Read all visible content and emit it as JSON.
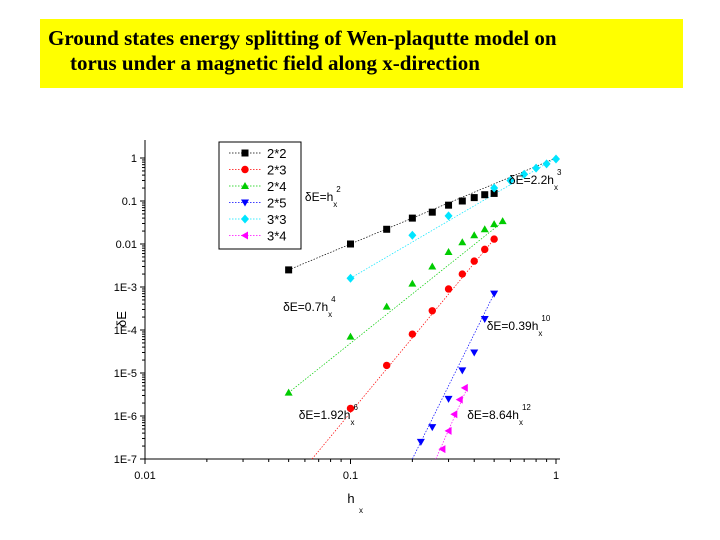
{
  "title": {
    "line1": "Ground states energy splitting of Wen-plaqutte model on",
    "line2": "torus under a magnetic field along x-direction"
  },
  "chart_data": {
    "type": "scatter",
    "xscale": "log",
    "yscale": "log",
    "xlim": [
      0.01,
      1
    ],
    "ylim": [
      1e-07,
      1
    ],
    "xticks": [
      "0.01",
      "0.1",
      "1"
    ],
    "yticks": [
      "1E-7",
      "1E-6",
      "1E-5",
      "1E-4",
      "1E-3",
      "0.01",
      "0.1",
      "1"
    ],
    "xlabel": "h",
    "xlabel_sub": "x",
    "ylabel": "δE",
    "legend": "top-left",
    "series": [
      {
        "name": "2*2",
        "color": "#000000",
        "marker": "square",
        "x": [
          0.05,
          0.1,
          0.15,
          0.2,
          0.25,
          0.3,
          0.35,
          0.4,
          0.45,
          0.5
        ],
        "y": [
          0.0025,
          0.01,
          0.022,
          0.04,
          0.055,
          0.08,
          0.1,
          0.12,
          0.14,
          0.15
        ]
      },
      {
        "name": "2*3",
        "color": "#ff0000",
        "marker": "circle",
        "x": [
          0.1,
          0.15,
          0.2,
          0.25,
          0.3,
          0.35,
          0.4,
          0.45,
          0.5
        ],
        "y": [
          1.5e-06,
          1.5e-05,
          8e-05,
          0.00028,
          0.0009,
          0.002,
          0.004,
          0.0075,
          0.013
        ]
      },
      {
        "name": "2*4",
        "color": "#00cc00",
        "marker": "triangle-up",
        "x": [
          0.05,
          0.1,
          0.15,
          0.2,
          0.25,
          0.3,
          0.35,
          0.4,
          0.45,
          0.5,
          0.55
        ],
        "y": [
          3.5e-06,
          7e-05,
          0.00035,
          0.0012,
          0.003,
          0.0065,
          0.011,
          0.016,
          0.022,
          0.029,
          0.034
        ]
      },
      {
        "name": "2*5",
        "color": "#0000ff",
        "marker": "triangle-down",
        "x": [
          0.22,
          0.25,
          0.3,
          0.35,
          0.4,
          0.45,
          0.5
        ],
        "y": [
          2.5e-07,
          5.5e-07,
          2.5e-06,
          1.15e-05,
          3e-05,
          0.00018,
          0.0007
        ]
      },
      {
        "name": "3*3",
        "color": "#00e5ff",
        "marker": "diamond",
        "x": [
          0.1,
          0.2,
          0.3,
          0.5,
          0.6,
          0.7,
          0.8,
          0.9,
          1.0
        ],
        "y": [
          0.0016,
          0.016,
          0.045,
          0.2,
          0.3,
          0.42,
          0.58,
          0.73,
          0.95
        ]
      },
      {
        "name": "3*4",
        "color": "#ff00ff",
        "marker": "triangle-left",
        "x": [
          0.28,
          0.3,
          0.32,
          0.34,
          0.36
        ],
        "y": [
          1.7e-07,
          4.5e-07,
          1.1e-06,
          2.4e-06,
          4.5e-06
        ]
      }
    ],
    "fit_lines": [
      {
        "x": [
          0.05,
          1
        ],
        "y": [
          0.0025,
          1
        ],
        "color": "#000000"
      },
      {
        "x": [
          0.1,
          1
        ],
        "y": [
          0.0016,
          1
        ],
        "color": "#00e5ff"
      },
      {
        "x": [
          0.05,
          0.56
        ],
        "y": [
          3.5e-06,
          0.035
        ],
        "color": "#00cc00"
      },
      {
        "x": [
          0.065,
          0.5
        ],
        "y": [
          1e-07,
          0.013
        ],
        "color": "#ff0000"
      },
      {
        "x": [
          0.2,
          0.5
        ],
        "y": [
          1e-07,
          0.0007
        ],
        "color": "#0000ff"
      },
      {
        "x": [
          0.26,
          0.37
        ],
        "y": [
          1e-07,
          4.5e-06
        ],
        "color": "#ff00ff"
      }
    ],
    "annotations": [
      {
        "base": "δE=h",
        "sub": "x",
        "sup": "2",
        "x": 0.06,
        "y": 0.1
      },
      {
        "base": "δE=2.2h",
        "sub": "x",
        "sup": "3",
        "x": 0.59,
        "y": 0.25
      },
      {
        "base": "δE=0.7h",
        "sub": "x",
        "sup": "4",
        "x": 0.047,
        "y": 0.00028
      },
      {
        "base": "δE=0.39h",
        "sub": "x",
        "sup": "10",
        "x": 0.46,
        "y": 0.0001
      },
      {
        "base": "δE=1.92h",
        "sub": "x",
        "sup": "6",
        "x": 0.056,
        "y": 8.5e-07
      },
      {
        "base": "δE=8.64h",
        "sub": "x",
        "sup": "12",
        "x": 0.37,
        "y": 8.5e-07
      }
    ]
  }
}
